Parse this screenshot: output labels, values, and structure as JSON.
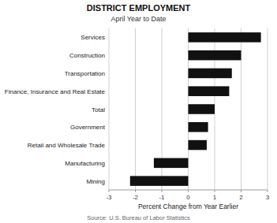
{
  "chart_data": {
    "type": "bar",
    "orientation": "horizontal",
    "title": "DISTRICT EMPLOYMENT",
    "subtitle": "April Year to Date",
    "annotations": [
      "Source: U.S. Bureau of Labor Statistics"
    ],
    "x_label": "Percent Change from Year Earlier",
    "categories": [
      "Mining",
      "Manufacturing",
      "Retail and Wholesale Trade",
      "Government",
      "Total",
      "Finance, Insurance and Real Estate",
      "Transportation",
      "Construction",
      "Services"
    ],
    "values": [
      -2.2,
      -1.3,
      0.7,
      0.75,
      1.0,
      1.55,
      1.65,
      2.0,
      2.75
    ],
    "color": "#111111",
    "xlim": [
      -3,
      3
    ],
    "xticks": [
      -3,
      -2,
      -1,
      0,
      1,
      2,
      3
    ],
    "grid": true
  }
}
